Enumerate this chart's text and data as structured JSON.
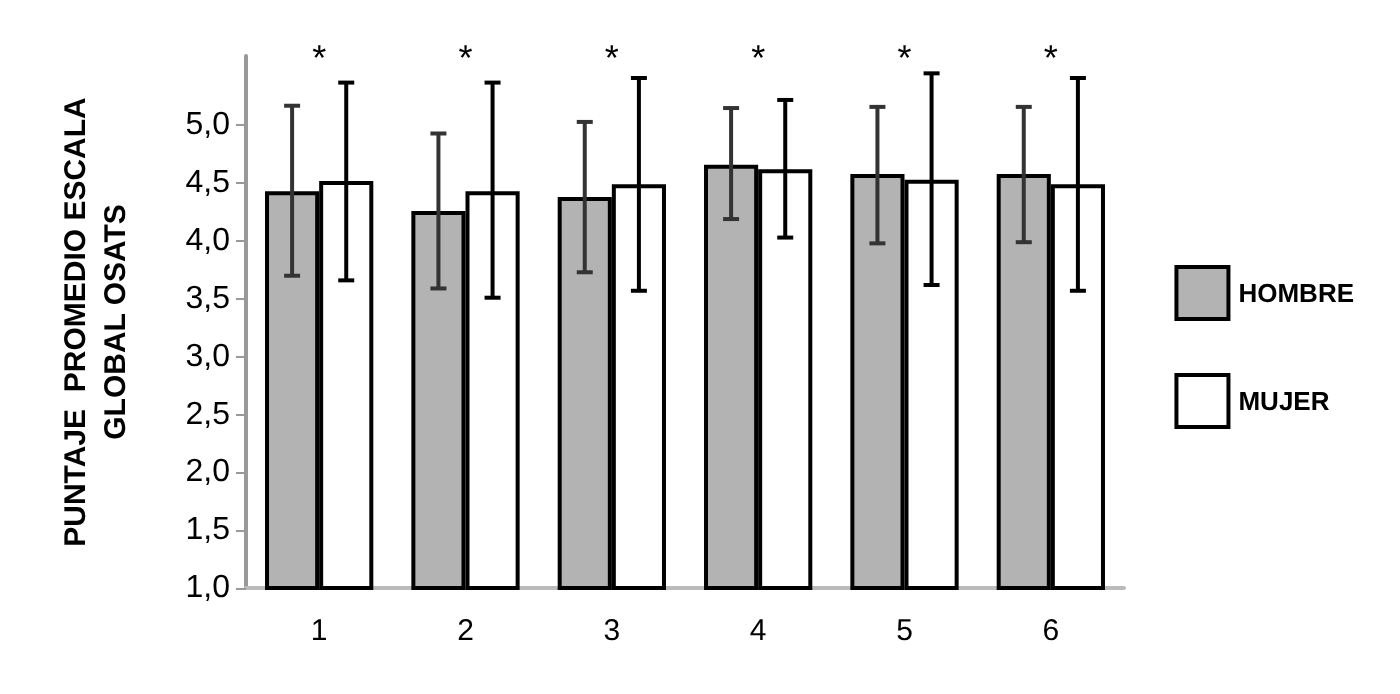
{
  "chart_data": {
    "type": "bar",
    "ylabel": "PUNTAJE  PROMEDIO ESCALA\nGLOBAL OSATS",
    "categories": [
      "1",
      "2",
      "3",
      "4",
      "5",
      "6"
    ],
    "series": [
      {
        "name": "HOMBRE",
        "color": "#b3b3b3",
        "values": [
          4.43,
          4.26,
          4.38,
          4.66,
          4.58,
          4.58
        ],
        "errors": [
          [
            3.7,
            5.17
          ],
          [
            3.59,
            4.93
          ],
          [
            3.73,
            5.03
          ],
          [
            4.19,
            5.15
          ],
          [
            3.98,
            5.16
          ],
          [
            3.99,
            5.16
          ]
        ]
      },
      {
        "name": "MUJER",
        "color": "#ffffff",
        "values": [
          4.52,
          4.43,
          4.49,
          4.62,
          4.53,
          4.49
        ],
        "errors": [
          [
            3.66,
            5.37
          ],
          [
            3.51,
            5.37
          ],
          [
            3.57,
            5.41
          ],
          [
            4.03,
            5.22
          ],
          [
            3.62,
            5.45
          ],
          [
            3.57,
            5.41
          ]
        ]
      }
    ],
    "ylim": [
      1,
      5.6
    ],
    "yticks": [
      {
        "value": 1,
        "label": "1,0"
      },
      {
        "value": 1.5,
        "label": "1,5"
      },
      {
        "value": 2,
        "label": "2,0"
      },
      {
        "value": 2.5,
        "label": "2,5"
      },
      {
        "value": 3,
        "label": "3,0"
      },
      {
        "value": 3.5,
        "label": "3,5"
      },
      {
        "value": 4,
        "label": "4,0"
      },
      {
        "value": 4.5,
        "label": "4,5"
      },
      {
        "value": 5,
        "label": "5,0"
      }
    ],
    "grid": false,
    "legend": "right",
    "annotations": [
      "*",
      "*",
      "*",
      "*",
      "*",
      "*"
    ]
  }
}
